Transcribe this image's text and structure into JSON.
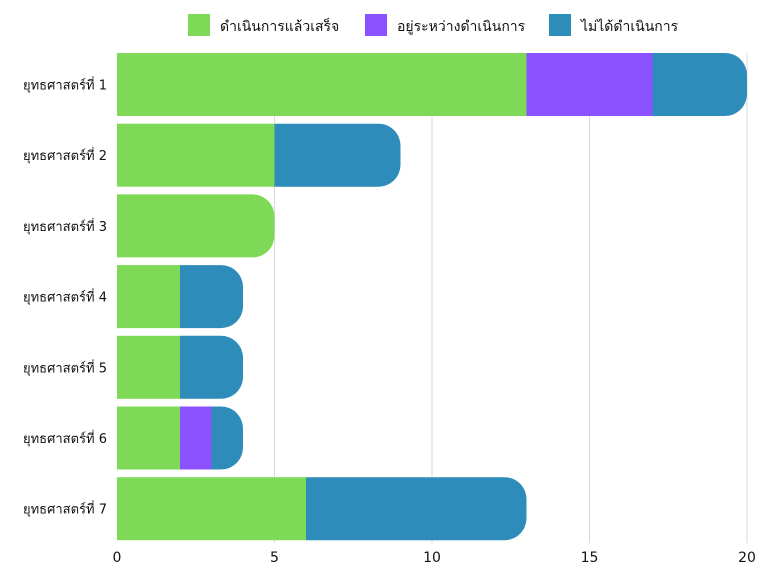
{
  "chart_data": {
    "type": "bar",
    "orientation": "horizontal",
    "stacked": true,
    "categories": [
      "ยุทธศาสตร์ที่ 1",
      "ยุทธศาสตร์ที่ 2",
      "ยุทธศาสตร์ที่ 3",
      "ยุทธศาสตร์ที่ 4",
      "ยุทธศาสตร์ที่ 5",
      "ยุทธศาสตร์ที่ 6",
      "ยุทธศาสตร์ที่ 7"
    ],
    "series": [
      {
        "name": "ดำเนินการแล้วเสร็จ",
        "color": "#7ed957",
        "values": [
          13,
          5,
          5,
          2,
          2,
          2,
          6
        ]
      },
      {
        "name": "อยู่ระหว่างดำเนินการ",
        "color": "#8c52ff",
        "values": [
          4,
          0,
          0,
          0,
          0,
          1,
          0
        ]
      },
      {
        "name": "ไม่ได้ดำเนินการ",
        "color": "#2d8cba",
        "values": [
          3,
          4,
          0,
          2,
          2,
          1,
          7
        ]
      }
    ],
    "xlim": [
      0,
      20
    ],
    "xticks": [
      0,
      5,
      10,
      15,
      20
    ],
    "grid": true,
    "legend_position": "top"
  }
}
